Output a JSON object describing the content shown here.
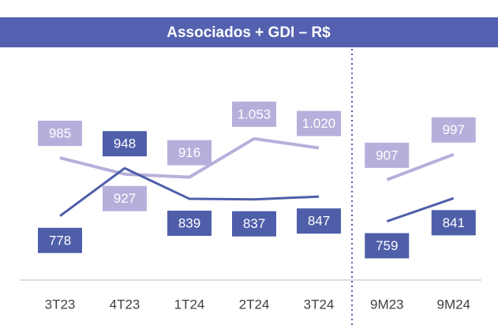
{
  "chart_data": [
    {
      "type": "line",
      "title": "Associados + GDI – R$",
      "categories": [
        "3T23",
        "4T23",
        "1T24",
        "2T24",
        "3T24"
      ],
      "series": [
        {
          "color": "#b7afdb",
          "values": [
            985,
            927,
            916,
            1053,
            1020
          ],
          "value_labels": [
            "985",
            "927",
            "916",
            "1.053",
            "1.020"
          ]
        },
        {
          "color": "#4f5ea9",
          "values": [
            778,
            948,
            839,
            837,
            847
          ]
        }
      ],
      "ylim": [
        550,
        1350
      ]
    },
    {
      "type": "line",
      "categories": [
        "9M23",
        "9M24"
      ],
      "series": [
        {
          "color": "#b7afdb",
          "values": [
            907,
            997
          ],
          "value_labels": [
            "907",
            "997"
          ]
        },
        {
          "color": "#4f5ea9",
          "values": [
            759,
            841
          ]
        }
      ],
      "ylim": [
        550,
        1350
      ]
    }
  ]
}
